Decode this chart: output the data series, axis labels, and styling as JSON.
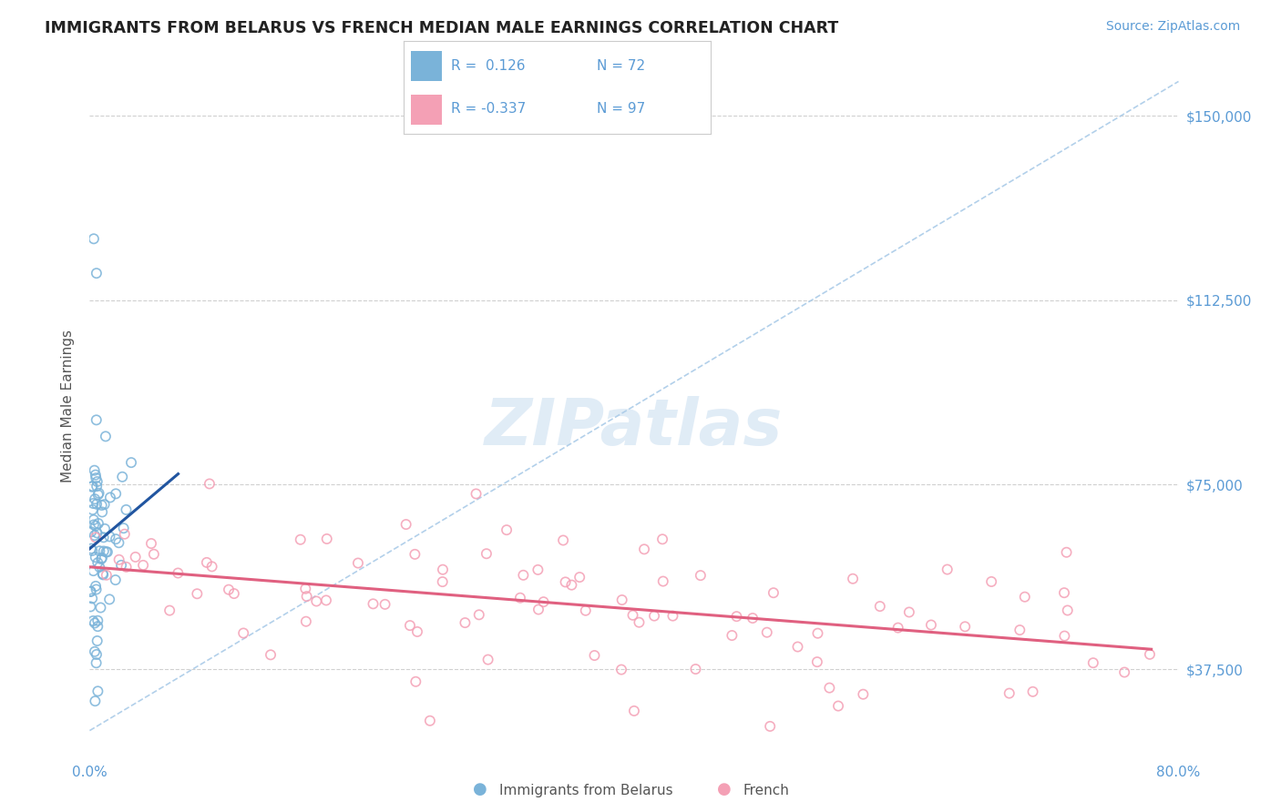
{
  "title": "IMMIGRANTS FROM BELARUS VS FRENCH MEDIAN MALE EARNINGS CORRELATION CHART",
  "source": "Source: ZipAtlas.com",
  "ylabel": "Median Male Earnings",
  "yticks": [
    37500,
    75000,
    112500,
    150000
  ],
  "ytick_labels": [
    "$37,500",
    "$75,000",
    "$112,500",
    "$150,000"
  ],
  "xmin": 0.0,
  "xmax": 0.8,
  "ymin": 20000,
  "ymax": 162000,
  "blue_R": 0.126,
  "blue_N": 72,
  "pink_R": -0.337,
  "pink_N": 97,
  "blue_color": "#7ab3d9",
  "pink_color": "#f4a0b5",
  "blue_line_color": "#2155a0",
  "pink_line_color": "#e06080",
  "diag_color": "#aacbe8",
  "blue_label": "Immigrants from Belarus",
  "pink_label": "French",
  "title_color": "#222222",
  "axis_color": "#5b9bd5",
  "watermark_text": "ZIPatlas",
  "watermark_color": "#c8ddf0",
  "grid_color": "#d0d0d0",
  "legend_border_color": "#cccccc",
  "bottom_legend_color": "#555555"
}
